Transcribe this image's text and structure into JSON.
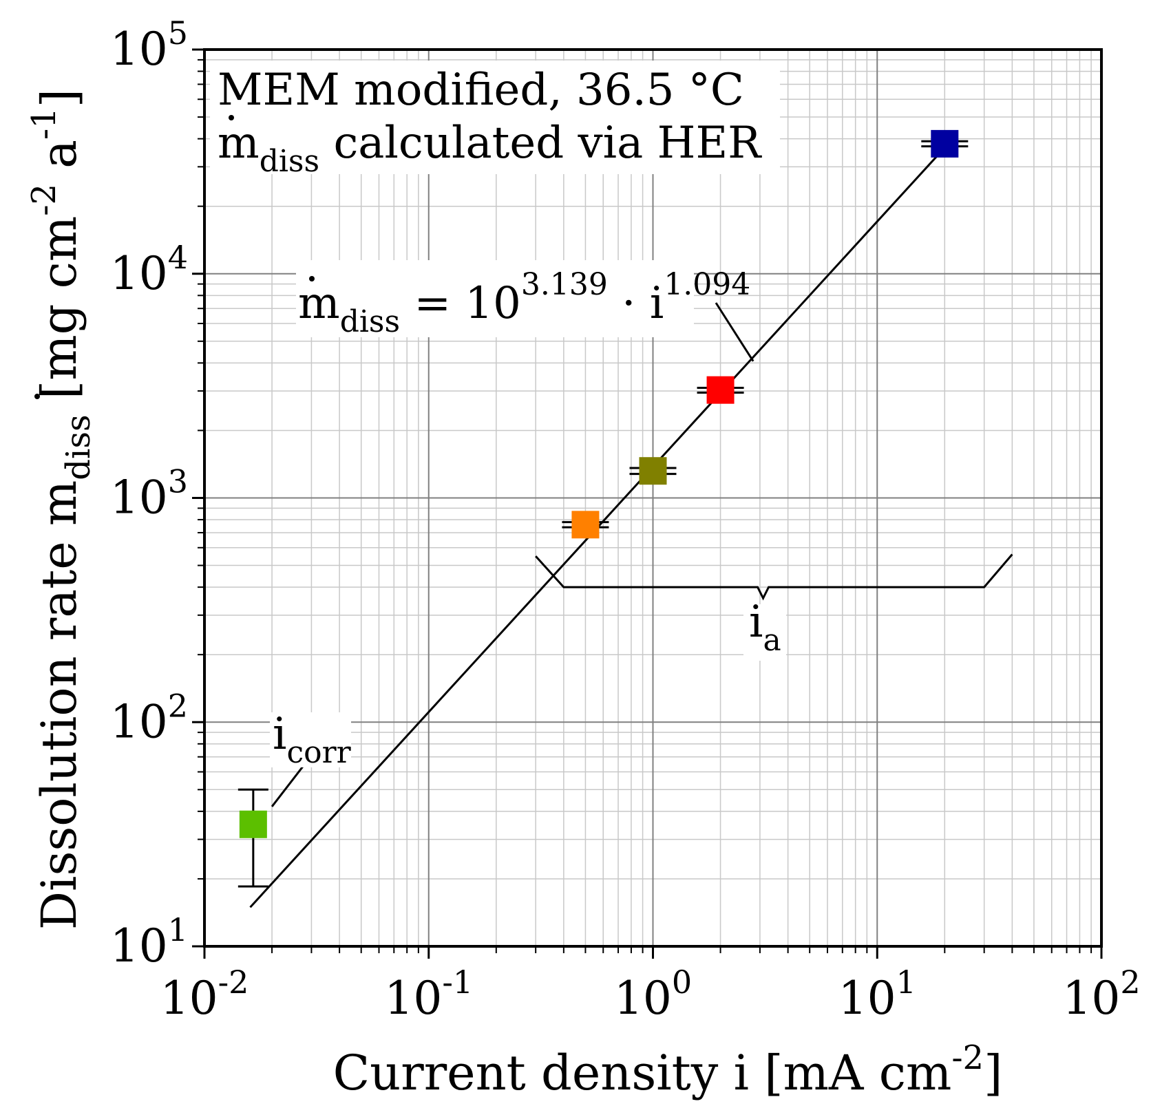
{
  "chart_data": {
    "type": "scatter",
    "xscale": "log",
    "yscale": "log",
    "xlim": [
      0.01,
      100
    ],
    "ylim": [
      10,
      100000
    ],
    "grid": true,
    "title_lines": {
      "line1": "MEM modified, 36.5 °C",
      "line2_main": "m",
      "line2_sub": "diss",
      "line2_rest": " calculated via HER"
    },
    "xlabel": {
      "main": "Current density i [mA cm",
      "sup": "-2",
      "close": "]"
    },
    "ylabel": {
      "main": "Dissolution rate m",
      "sub": "diss",
      "rest": " [mg cm",
      "sup1": "-2",
      "mid": " a",
      "sup2": "-1",
      "close": "]"
    },
    "xticks": [
      {
        "base": "10",
        "exp": "-2",
        "value": 0.01
      },
      {
        "base": "10",
        "exp": "-1",
        "value": 0.1
      },
      {
        "base": "10",
        "exp": "0",
        "value": 1
      },
      {
        "base": "10",
        "exp": "1",
        "value": 10
      },
      {
        "base": "10",
        "exp": "2",
        "value": 100
      }
    ],
    "yticks": [
      {
        "base": "10",
        "exp": "1",
        "value": 10
      },
      {
        "base": "10",
        "exp": "2",
        "value": 100
      },
      {
        "base": "10",
        "exp": "3",
        "value": 1000
      },
      {
        "base": "10",
        "exp": "4",
        "value": 10000
      },
      {
        "base": "10",
        "exp": "5",
        "value": 100000
      }
    ],
    "points": [
      {
        "label": "i_corr",
        "x": 0.0165,
        "y": 35,
        "err_low": 18.5,
        "err_high": 50,
        "color": "#5cbf00"
      },
      {
        "label": "i_a 0.5",
        "x": 0.5,
        "y": 760,
        "err_low": 740,
        "err_high": 780,
        "color": "#ff8000"
      },
      {
        "label": "i_a 1",
        "x": 1.0,
        "y": 1320,
        "err_low": 1280,
        "err_high": 1360,
        "color": "#808000"
      },
      {
        "label": "i_a 2",
        "x": 2.0,
        "y": 3030,
        "err_low": 2950,
        "err_high": 3100,
        "color": "#ff0000"
      },
      {
        "label": "i_a 20",
        "x": 20.0,
        "y": 38000,
        "err_low": 37000,
        "err_high": 39000,
        "color": "#0000a0"
      }
    ],
    "fit": {
      "log_coefficient": 3.139,
      "exponent": 1.094,
      "x_range": [
        0.016,
        20
      ],
      "label": {
        "lhs_main": "m",
        "lhs_sub": "diss",
        "eq": " = 10",
        "coef_sup": "3.139",
        "dot": " · i",
        "exp_sup": "1.094"
      }
    },
    "annotations": {
      "icorr": {
        "main": "i",
        "sub": "corr"
      },
      "ia": {
        "main": "i",
        "sub": "a"
      }
    }
  }
}
